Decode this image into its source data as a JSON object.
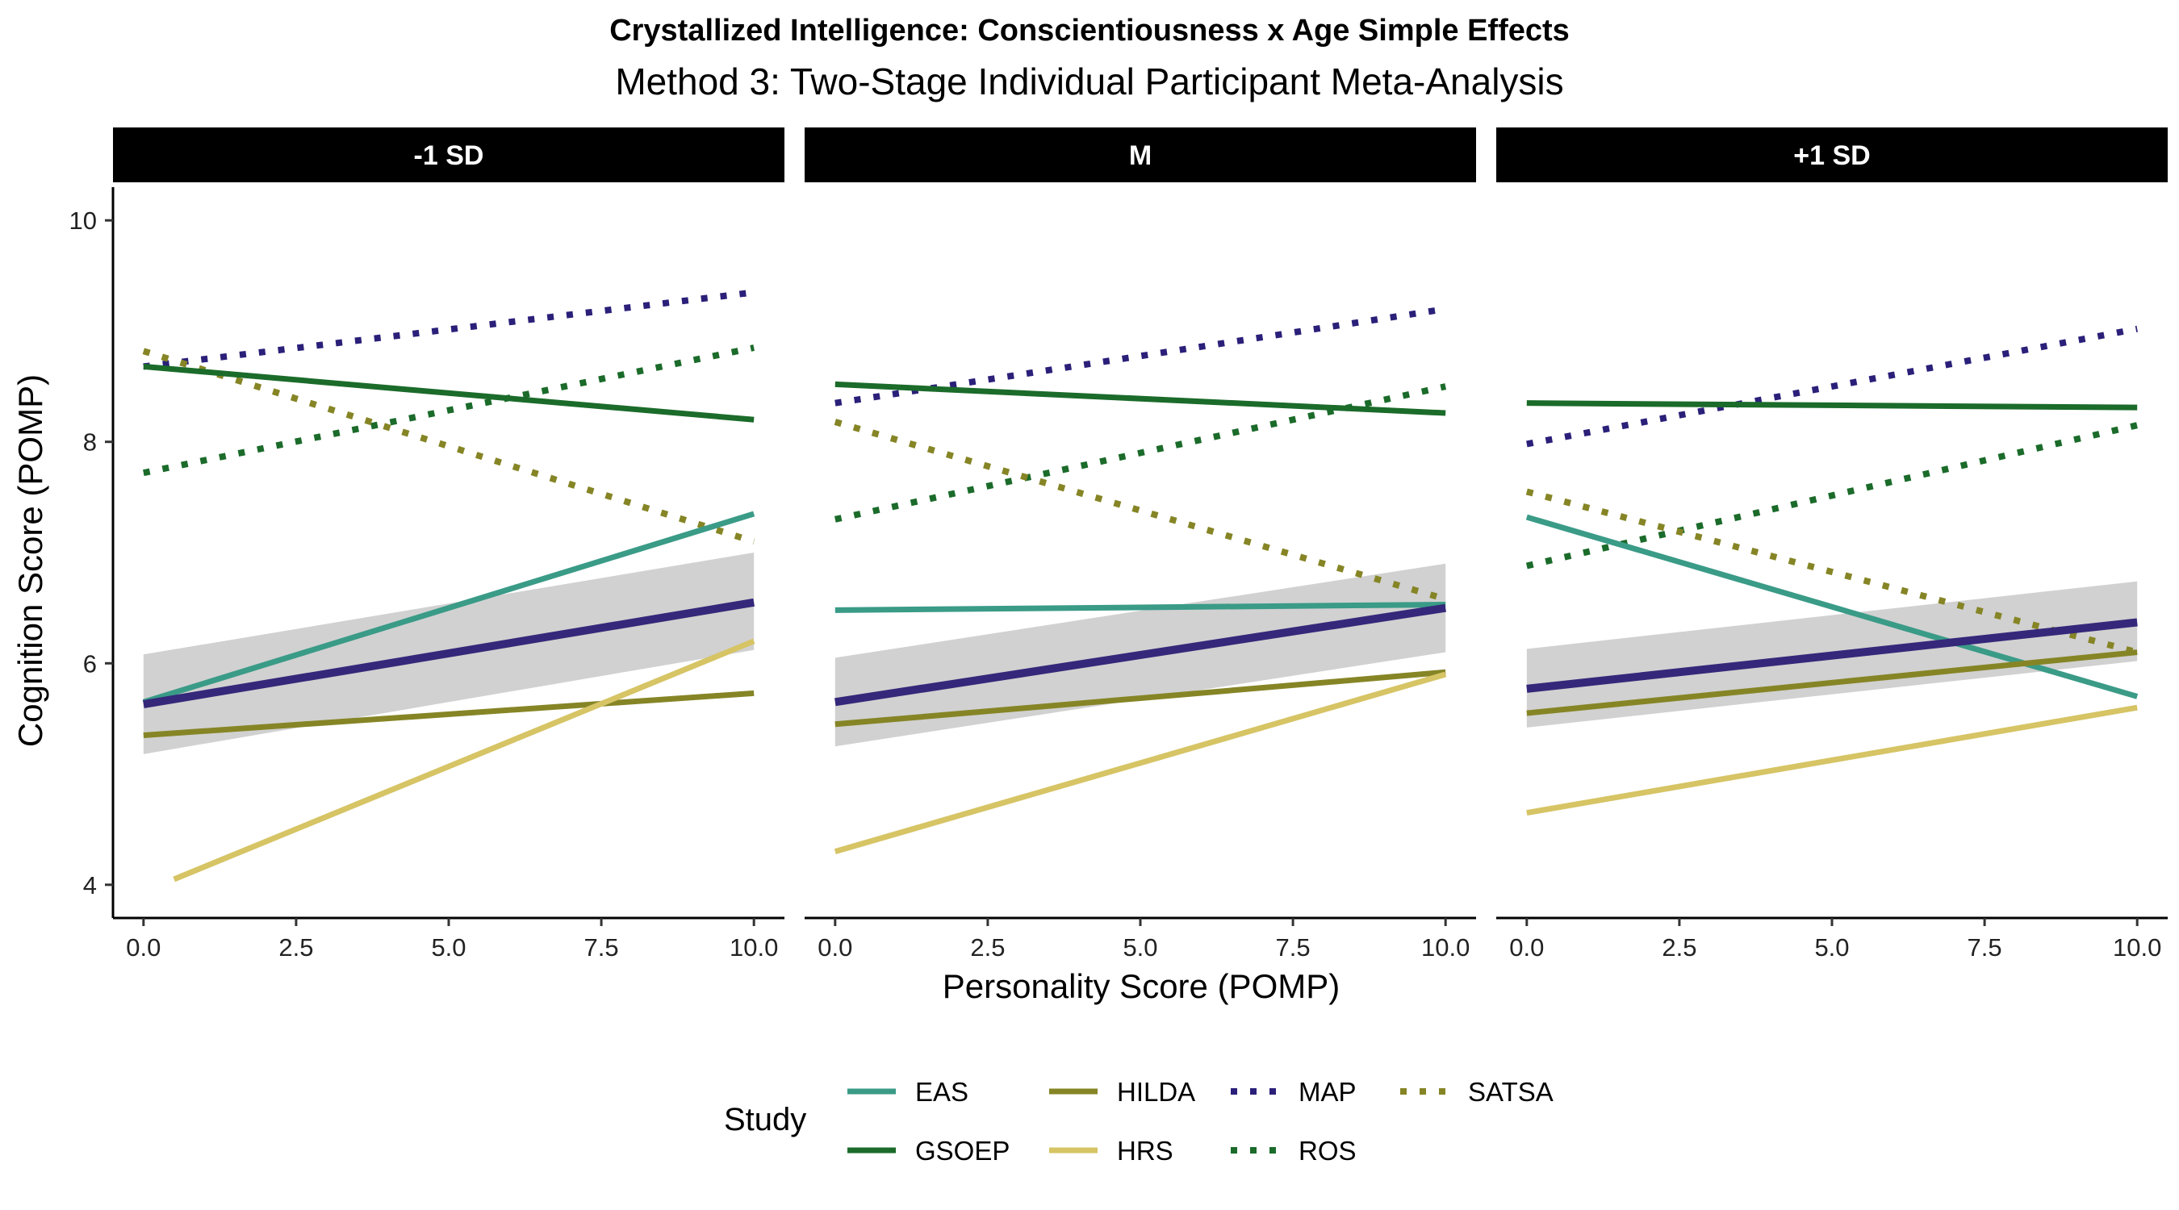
{
  "chart_data": {
    "type": "line",
    "title": "Crystallized Intelligence: Conscientiousness x Age Simple Effects",
    "subtitle": "Method 3: Two-Stage Individual Participant Meta-Analysis",
    "xlabel": "Personality Score (POMP)",
    "ylabel": "Cognition Score (POMP)",
    "xlim": [
      -0.5,
      10.5
    ],
    "ylim": [
      3.7,
      10.3
    ],
    "x_ticks": [
      "0.0",
      "2.5",
      "5.0",
      "7.5",
      "10.0"
    ],
    "y_ticks": [
      "4",
      "6",
      "8",
      "10"
    ],
    "grid": false,
    "legend": {
      "title": "Study",
      "position": "bottom"
    },
    "legend_items": [
      {
        "name": "EAS",
        "color": "#3a9b87",
        "dash": "solid"
      },
      {
        "name": "GSOEP",
        "color": "#1b6b2a",
        "dash": "solid"
      },
      {
        "name": "HILDA",
        "color": "#868526",
        "dash": "solid"
      },
      {
        "name": "HRS",
        "color": "#d6c465",
        "dash": "solid"
      },
      {
        "name": "MAP",
        "color": "#2a2079",
        "dash": "dotted"
      },
      {
        "name": "ROS",
        "color": "#1b6b2a",
        "dash": "dotted"
      },
      {
        "name": "SATSA",
        "color": "#868526",
        "dash": "dotted"
      }
    ],
    "overall_line_color": "#35287a",
    "ribbon_color": "#cfcfcf",
    "panels": [
      {
        "label": "-1 SD",
        "series": [
          {
            "name": "MAP",
            "x": [
              0,
              10
            ],
            "y": [
              8.68,
              9.35
            ]
          },
          {
            "name": "ROS",
            "x": [
              0,
              10
            ],
            "y": [
              7.72,
              8.85
            ]
          },
          {
            "name": "SATSA",
            "x": [
              0,
              10
            ],
            "y": [
              8.82,
              7.1
            ]
          },
          {
            "name": "GSOEP",
            "x": [
              0,
              10
            ],
            "y": [
              8.68,
              8.2
            ]
          },
          {
            "name": "EAS",
            "x": [
              0,
              10
            ],
            "y": [
              5.65,
              7.35
            ]
          },
          {
            "name": "HILDA",
            "x": [
              0,
              10
            ],
            "y": [
              5.35,
              5.73
            ]
          },
          {
            "name": "HRS",
            "x": [
              0.5,
              10
            ],
            "y": [
              4.05,
              6.2
            ]
          }
        ],
        "overall": {
          "x": [
            0,
            10
          ],
          "y": [
            5.63,
            6.55
          ],
          "lower": [
            5.18,
            6.12
          ],
          "upper": [
            6.08,
            7.0
          ]
        }
      },
      {
        "label": "M",
        "series": [
          {
            "name": "MAP",
            "x": [
              0,
              10
            ],
            "y": [
              8.35,
              9.2
            ]
          },
          {
            "name": "ROS",
            "x": [
              0,
              10
            ],
            "y": [
              7.3,
              8.5
            ]
          },
          {
            "name": "SATSA",
            "x": [
              0,
              10
            ],
            "y": [
              8.18,
              6.58
            ]
          },
          {
            "name": "GSOEP",
            "x": [
              0,
              10
            ],
            "y": [
              8.52,
              8.26
            ]
          },
          {
            "name": "EAS",
            "x": [
              0,
              10
            ],
            "y": [
              6.48,
              6.53
            ]
          },
          {
            "name": "HILDA",
            "x": [
              0,
              10
            ],
            "y": [
              5.45,
              5.92
            ]
          },
          {
            "name": "HRS",
            "x": [
              0,
              10
            ],
            "y": [
              4.3,
              5.9
            ]
          }
        ],
        "overall": {
          "x": [
            0,
            10
          ],
          "y": [
            5.65,
            6.5
          ],
          "lower": [
            5.25,
            6.1
          ],
          "upper": [
            6.05,
            6.9
          ]
        }
      },
      {
        "label": "+1 SD",
        "series": [
          {
            "name": "MAP",
            "x": [
              0,
              10
            ],
            "y": [
              7.98,
              9.02
            ]
          },
          {
            "name": "ROS",
            "x": [
              0,
              10
            ],
            "y": [
              6.88,
              8.15
            ]
          },
          {
            "name": "SATSA",
            "x": [
              0,
              10
            ],
            "y": [
              7.55,
              6.1
            ]
          },
          {
            "name": "GSOEP",
            "x": [
              0,
              10
            ],
            "y": [
              8.35,
              8.31
            ]
          },
          {
            "name": "EAS",
            "x": [
              0,
              10
            ],
            "y": [
              7.32,
              5.7
            ]
          },
          {
            "name": "HILDA",
            "x": [
              0,
              10
            ],
            "y": [
              5.55,
              6.1
            ]
          },
          {
            "name": "HRS",
            "x": [
              0,
              10
            ],
            "y": [
              4.65,
              5.6
            ]
          }
        ],
        "overall": {
          "x": [
            0,
            10
          ],
          "y": [
            5.77,
            6.37
          ],
          "lower": [
            5.42,
            6.02
          ],
          "upper": [
            6.13,
            6.74
          ]
        }
      }
    ]
  }
}
